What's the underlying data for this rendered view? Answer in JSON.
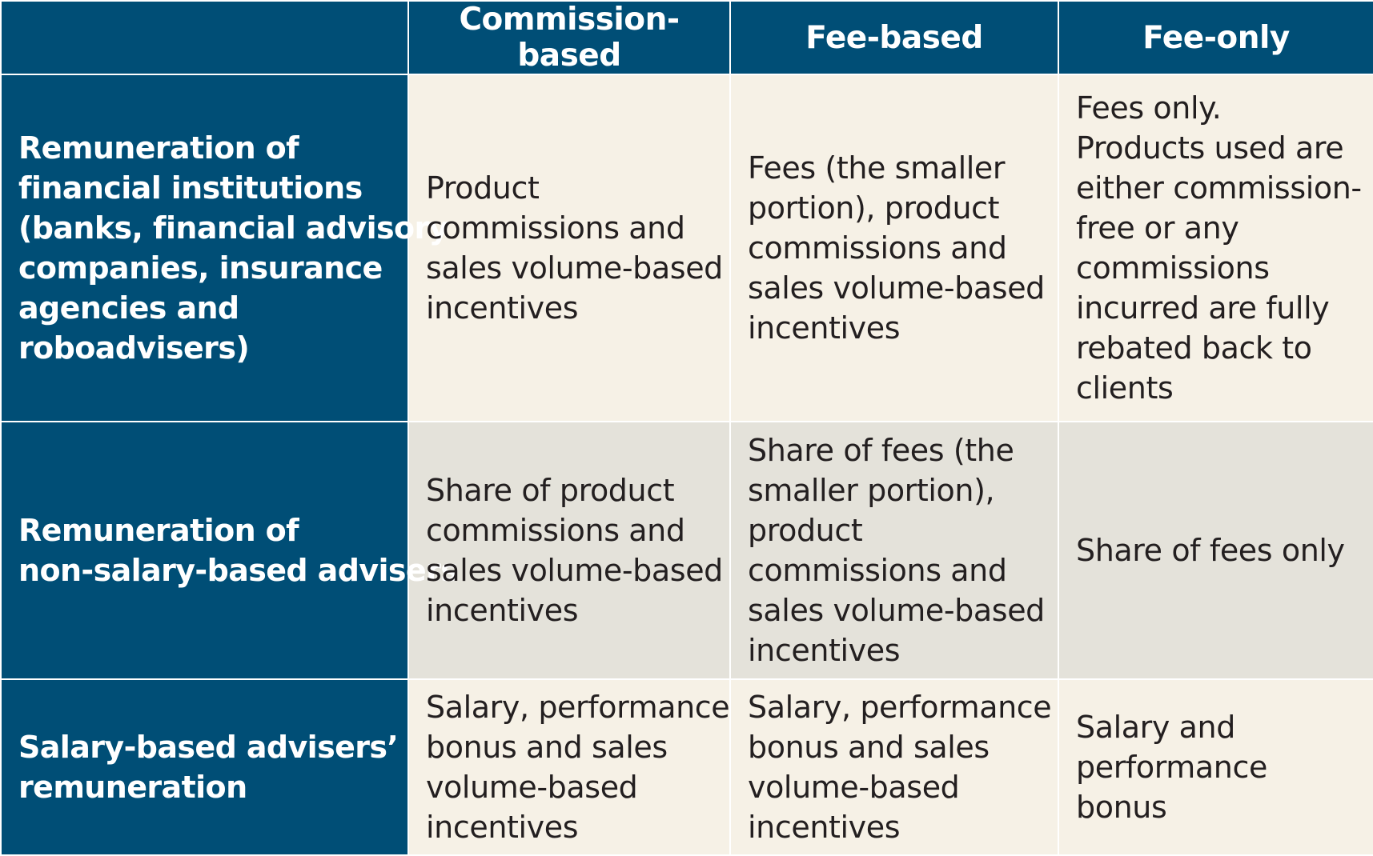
{
  "columns": [
    "Commission-based",
    "Fee-based",
    "Fee-only"
  ],
  "rows": [
    {
      "label": [
        "Remuneration of",
        "financial institutions",
        "(banks, financial advisory",
        "companies, insurance",
        "agencies and",
        "roboadvisers)"
      ],
      "cells": [
        [
          "Product",
          "commissions and",
          "sales volume-based",
          "incentives"
        ],
        [
          "Fees (the smaller",
          "portion), product",
          "commissions and",
          "sales volume-based",
          "incentives"
        ],
        [
          "Fees only.",
          "Products used are",
          "either commission-",
          "free or any",
          "commissions",
          "incurred are fully",
          "rebated back to",
          "clients"
        ]
      ]
    },
    {
      "label": [
        "Remuneration of",
        "non-salary-based advisers"
      ],
      "cells": [
        [
          "Share of product",
          "commissions and",
          "sales volume-based",
          "incentives"
        ],
        [
          "Share of fees (the",
          "smaller portion),",
          "product",
          "commissions and",
          "sales volume-based",
          "incentives"
        ],
        [
          "Share of fees only"
        ]
      ]
    },
    {
      "label": [
        "Salary-based advisers’",
        "remuneration"
      ],
      "cells": [
        [
          "Salary, performance",
          "bonus and sales",
          "volume-based",
          "incentives"
        ],
        [
          "Salary, performance",
          "bonus and sales",
          "volume-based",
          "incentives"
        ],
        [
          "Salary and",
          "performance",
          "bonus"
        ]
      ]
    }
  ],
  "colors": {
    "header_bg": "#004e76",
    "header_text": "#ffffff",
    "cell_light": "#f6f1e6",
    "cell_gray": "#e4e2da",
    "cell_text": "#231f20"
  }
}
